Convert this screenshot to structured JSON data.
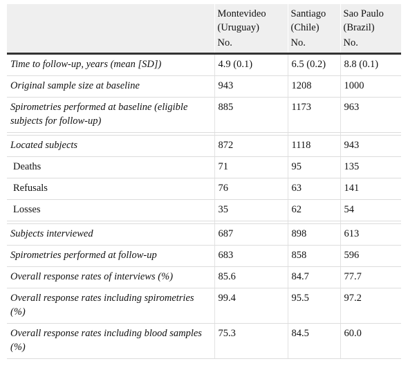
{
  "header": {
    "columns": [
      {
        "name": "Montevideo (Uruguay)",
        "sub": "No."
      },
      {
        "name": "Santiago (Chile)",
        "sub": "No."
      },
      {
        "name": "Sao Paulo (Brazil)",
        "sub": "No."
      }
    ]
  },
  "rows": [
    {
      "label": "Time to follow-up, years (mean [SD])",
      "values": [
        "4.9 (0.1)",
        "6.5 (0.2)",
        "8.8 (0.1)"
      ]
    },
    {
      "label": "Original sample size at baseline",
      "values": [
        "943",
        "1208",
        "1000"
      ]
    },
    {
      "label": "Spirometries performed at baseline (eligible subjects for follow-up)",
      "values": [
        "885",
        "1173",
        "963"
      ]
    },
    {
      "label": "Located subjects",
      "values": [
        "872",
        "1118",
        "943"
      ]
    },
    {
      "label": "Deaths",
      "values": [
        "71",
        "95",
        "135"
      ]
    },
    {
      "label": "Refusals",
      "values": [
        "76",
        "63",
        "141"
      ]
    },
    {
      "label": "Losses",
      "values": [
        "35",
        "62",
        "54"
      ]
    },
    {
      "label": "Subjects interviewed",
      "values": [
        "687",
        "898",
        "613"
      ]
    },
    {
      "label": "Spirometries performed at follow-up",
      "values": [
        "683",
        "858",
        "596"
      ]
    },
    {
      "label": "Overall response rates of interviews (%)",
      "values": [
        "85.6",
        "84.7",
        "77.7"
      ]
    },
    {
      "label": "Overall response rates including spirometries (%)",
      "values": [
        "99.4",
        "95.5",
        "97.2"
      ]
    },
    {
      "label": "Overall response rates including blood samples (%)",
      "values": [
        "75.3",
        "84.5",
        "60.0"
      ]
    }
  ]
}
